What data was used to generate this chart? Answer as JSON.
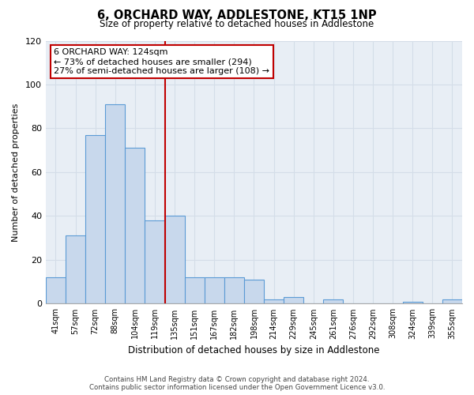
{
  "title": "6, ORCHARD WAY, ADDLESTONE, KT15 1NP",
  "subtitle": "Size of property relative to detached houses in Addlestone",
  "xlabel": "Distribution of detached houses by size in Addlestone",
  "ylabel": "Number of detached properties",
  "bar_labels": [
    "41sqm",
    "57sqm",
    "72sqm",
    "88sqm",
    "104sqm",
    "119sqm",
    "135sqm",
    "151sqm",
    "167sqm",
    "182sqm",
    "198sqm",
    "214sqm",
    "229sqm",
    "245sqm",
    "261sqm",
    "276sqm",
    "292sqm",
    "308sqm",
    "324sqm",
    "339sqm",
    "355sqm"
  ],
  "bar_values": [
    12,
    31,
    77,
    91,
    71,
    38,
    40,
    12,
    12,
    12,
    11,
    2,
    3,
    0,
    2,
    0,
    0,
    0,
    1,
    0,
    2
  ],
  "bar_color": "#c8d8ec",
  "bar_edge_color": "#5b9bd5",
  "vline_x": 5.5,
  "vline_color": "#c00000",
  "annotation_title": "6 ORCHARD WAY: 124sqm",
  "annotation_line1": "← 73% of detached houses are smaller (294)",
  "annotation_line2": "27% of semi-detached houses are larger (108) →",
  "annotation_box_color": "#ffffff",
  "annotation_box_edge": "#c00000",
  "ylim": [
    0,
    120
  ],
  "yticks": [
    0,
    20,
    40,
    60,
    80,
    100,
    120
  ],
  "footer1": "Contains HM Land Registry data © Crown copyright and database right 2024.",
  "footer2": "Contains public sector information licensed under the Open Government Licence v3.0.",
  "bg_color": "#ffffff",
  "grid_color": "#d4dde8"
}
